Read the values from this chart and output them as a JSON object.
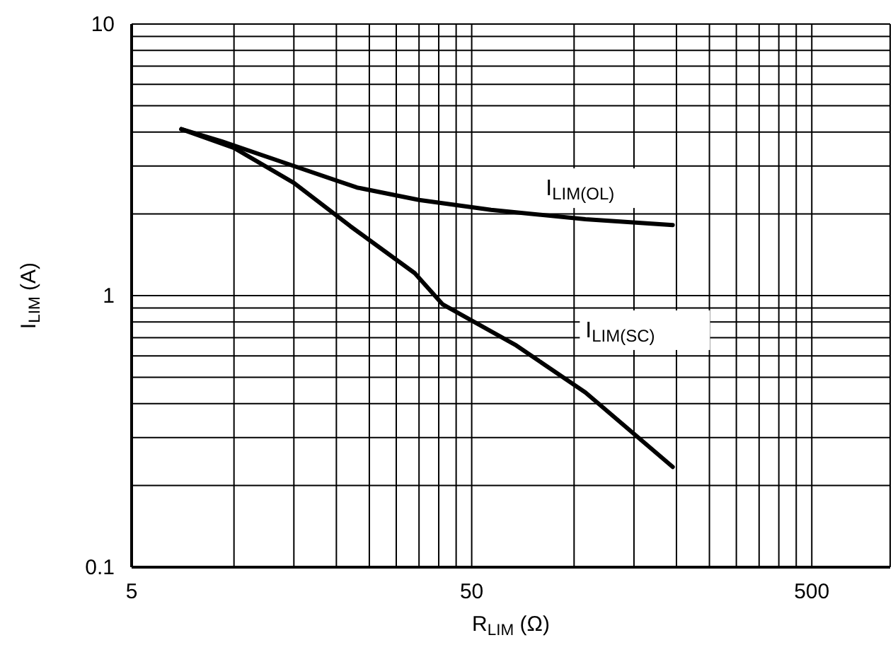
{
  "chart_data": {
    "type": "line",
    "xlabel": "R$_{LIM}$ (Ω)",
    "ylabel": "I$_{LIM}$ (A)",
    "log": "xy",
    "grid": true,
    "legend": false,
    "marker": "none",
    "line_style": "solid",
    "xlim": [
      5,
      850
    ],
    "ylim": [
      0.1,
      10
    ],
    "xticks": [
      5,
      {
        "value": 10,
        "label": null
      },
      {
        "value": 15,
        "label": null
      },
      {
        "value": 20,
        "label": null
      },
      {
        "value": 25,
        "label": null
      },
      {
        "value": 30,
        "label": null
      },
      {
        "value": 35,
        "label": null
      },
      {
        "value": 40,
        "label": null
      },
      {
        "value": 45,
        "label": null
      },
      50,
      {
        "value": 100,
        "label": null
      },
      {
        "value": 150,
        "label": null
      },
      {
        "value": 200,
        "label": null
      },
      {
        "value": 250,
        "label": null
      },
      {
        "value": 300,
        "label": null
      },
      {
        "value": 350,
        "label": null
      },
      {
        "value": 400,
        "label": null
      },
      {
        "value": 450,
        "label": null
      },
      500
    ],
    "yticks": [
      0.1,
      {
        "value": 0.2,
        "label": null
      },
      {
        "value": 0.3,
        "label": null
      },
      {
        "value": 0.4,
        "label": null
      },
      {
        "value": 0.5,
        "label": null
      },
      {
        "value": 0.6,
        "label": null
      },
      {
        "value": 0.7,
        "label": null
      },
      {
        "value": 0.8,
        "label": null
      },
      {
        "value": 0.9,
        "label": null
      },
      1,
      {
        "value": 2,
        "label": null
      },
      {
        "value": 3,
        "label": null
      },
      {
        "value": 4,
        "label": null
      },
      {
        "value": 5,
        "label": null
      },
      {
        "value": 6,
        "label": null
      },
      {
        "value": 7,
        "label": null
      },
      {
        "value": 8,
        "label": null
      },
      {
        "value": 9,
        "label": null
      },
      10
    ],
    "series": [
      {
        "name": "I$_{LIM(OL)}$",
        "color": "#000000",
        "x": [
          7,
          9.2,
          15,
          23,
          35,
          57,
          108,
          195
        ],
        "values": [
          4.1,
          3.7,
          3,
          2.5,
          2.25,
          2.07,
          1.91,
          1.82
        ]
      },
      {
        "name": "I$_{LIM(SC)}$",
        "color": "#000000",
        "x": [
          7,
          10,
          15,
          22,
          34,
          41,
          67,
          108,
          195
        ],
        "values": [
          4.1,
          3.5,
          2.6,
          1.8,
          1.21,
          0.93,
          0.66,
          0.44,
          0.234
        ]
      }
    ]
  }
}
